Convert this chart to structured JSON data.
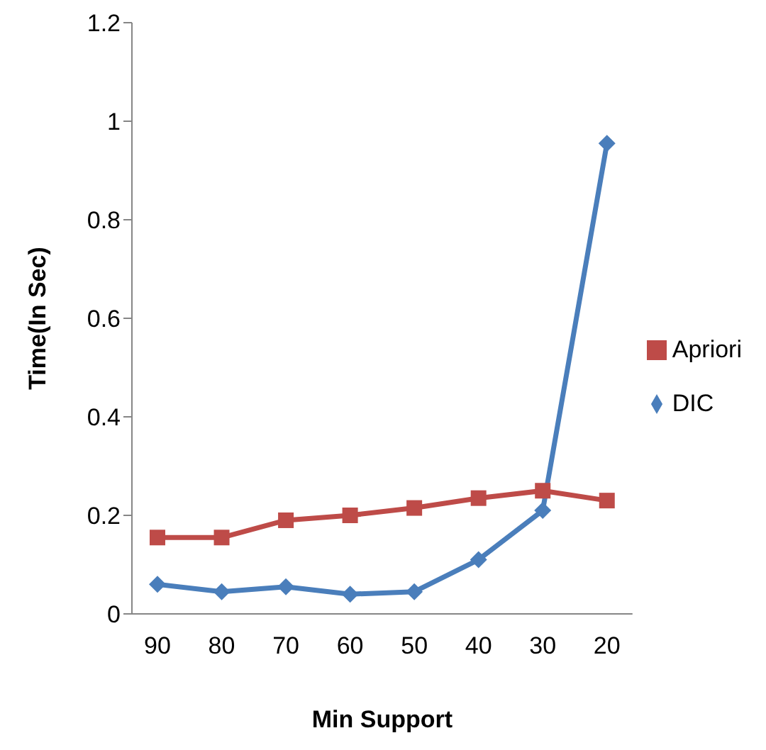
{
  "chart_data": {
    "type": "line",
    "xlabel": "Min Support",
    "ylabel": "Time(In Sec)",
    "categories": [
      "90",
      "80",
      "70",
      "60",
      "50",
      "40",
      "30",
      "20"
    ],
    "series": [
      {
        "name": "DIC",
        "color": "#4a7ebb",
        "marker": "diamond",
        "values": [
          0.06,
          0.045,
          0.055,
          0.04,
          0.045,
          0.11,
          0.21,
          0.955
        ]
      },
      {
        "name": "Apriori",
        "color": "#be4b48",
        "marker": "square",
        "values": [
          0.155,
          0.155,
          0.19,
          0.2,
          0.215,
          0.235,
          0.25,
          0.23
        ]
      }
    ],
    "ylim": [
      0,
      1.2
    ],
    "yticks": [
      0,
      0.2,
      0.4,
      0.6,
      0.8,
      1,
      1.2
    ],
    "grid": false,
    "legend": "right"
  }
}
